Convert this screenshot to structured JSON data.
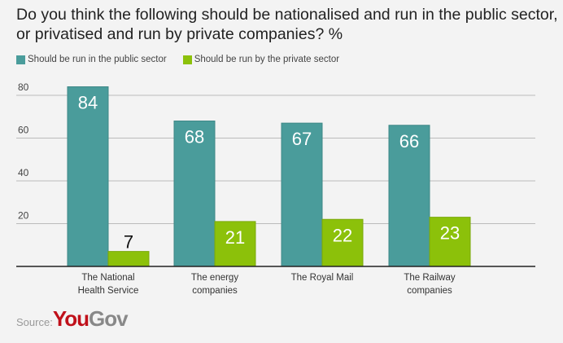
{
  "chart_data": {
    "type": "bar",
    "title": "Do you think the following should be nationalised and run in the public sector, or privatised and run by private companies? %",
    "categories": [
      "The National\nHealth Service",
      "The energy\ncompanies",
      "The Royal Mail",
      "The Railway\ncompanies"
    ],
    "series": [
      {
        "name": "Should be run in the public sector",
        "values": [
          84,
          68,
          67,
          66
        ],
        "color": "#4a9c9b"
      },
      {
        "name": "Should be run by the private sector",
        "values": [
          7,
          21,
          22,
          23
        ],
        "color": "#8cc10a"
      }
    ],
    "yticks": [
      20,
      40,
      60,
      80
    ],
    "ylim": [
      0,
      90
    ],
    "grid": true,
    "legend": "top-left",
    "xlabel": "",
    "ylabel": ""
  },
  "source": {
    "label": "Source:",
    "logo_you": "You",
    "logo_gov": "Gov"
  }
}
